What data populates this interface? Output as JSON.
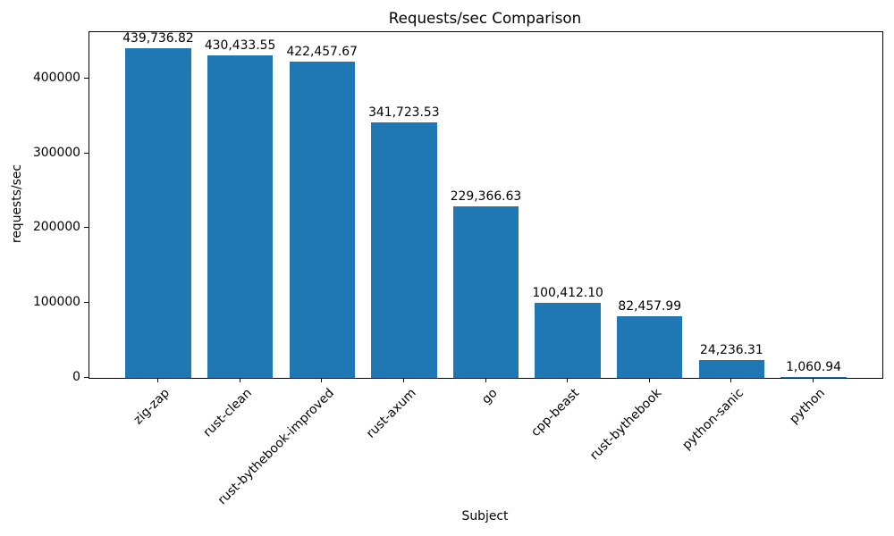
{
  "chart_data": {
    "type": "bar",
    "title": "Requests/sec Comparison",
    "xlabel": "Subject",
    "ylabel": "requests/sec",
    "categories": [
      "zig-zap",
      "rust-clean",
      "rust-bythebook-improved",
      "rust-axum",
      "go",
      "cpp-beast",
      "rust-bythebook",
      "python-sanic",
      "python"
    ],
    "values": [
      439736.82,
      430433.55,
      422457.67,
      341723.53,
      229366.63,
      100412.1,
      82457.99,
      24236.31,
      1060.94
    ],
    "value_labels": [
      "439,736.82",
      "430,433.55",
      "422,457.67",
      "341,723.53",
      "229,366.63",
      "100,412.10",
      "82,457.99",
      "24,236.31",
      "1,060.94"
    ],
    "yticks": [
      0,
      100000,
      200000,
      300000,
      400000
    ],
    "ytick_labels": [
      "0",
      "100000",
      "200000",
      "300000",
      "400000"
    ],
    "ylim": [
      0,
      461724
    ],
    "bar_color": "#1f77b4",
    "grid": false,
    "legend_position": "none"
  }
}
